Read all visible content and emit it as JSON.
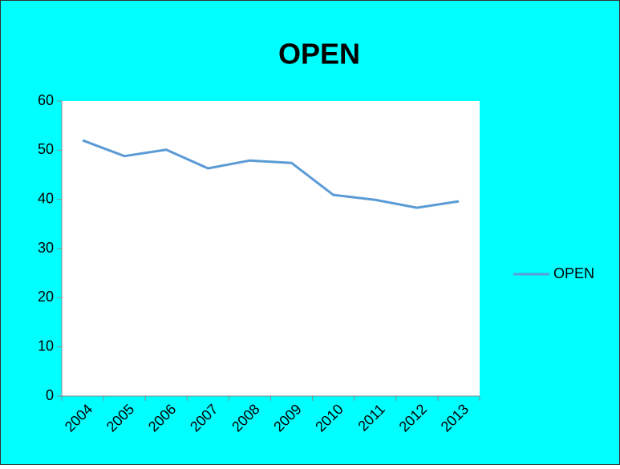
{
  "chart_data": {
    "type": "line",
    "title": "OPEN",
    "categories": [
      "2004",
      "2005",
      "2006",
      "2007",
      "2008",
      "2009",
      "2010",
      "2011",
      "2012",
      "2013"
    ],
    "series": [
      {
        "name": "OPEN",
        "color": "#5b9bd5",
        "values": [
          52,
          48.8,
          50.1,
          46.3,
          47.9,
          47.4,
          40.9,
          39.9,
          38.3,
          39.6
        ]
      }
    ],
    "ylim": [
      0,
      60
    ],
    "yticks": [
      0,
      10,
      20,
      30,
      40,
      50,
      60
    ],
    "legend": "right"
  }
}
